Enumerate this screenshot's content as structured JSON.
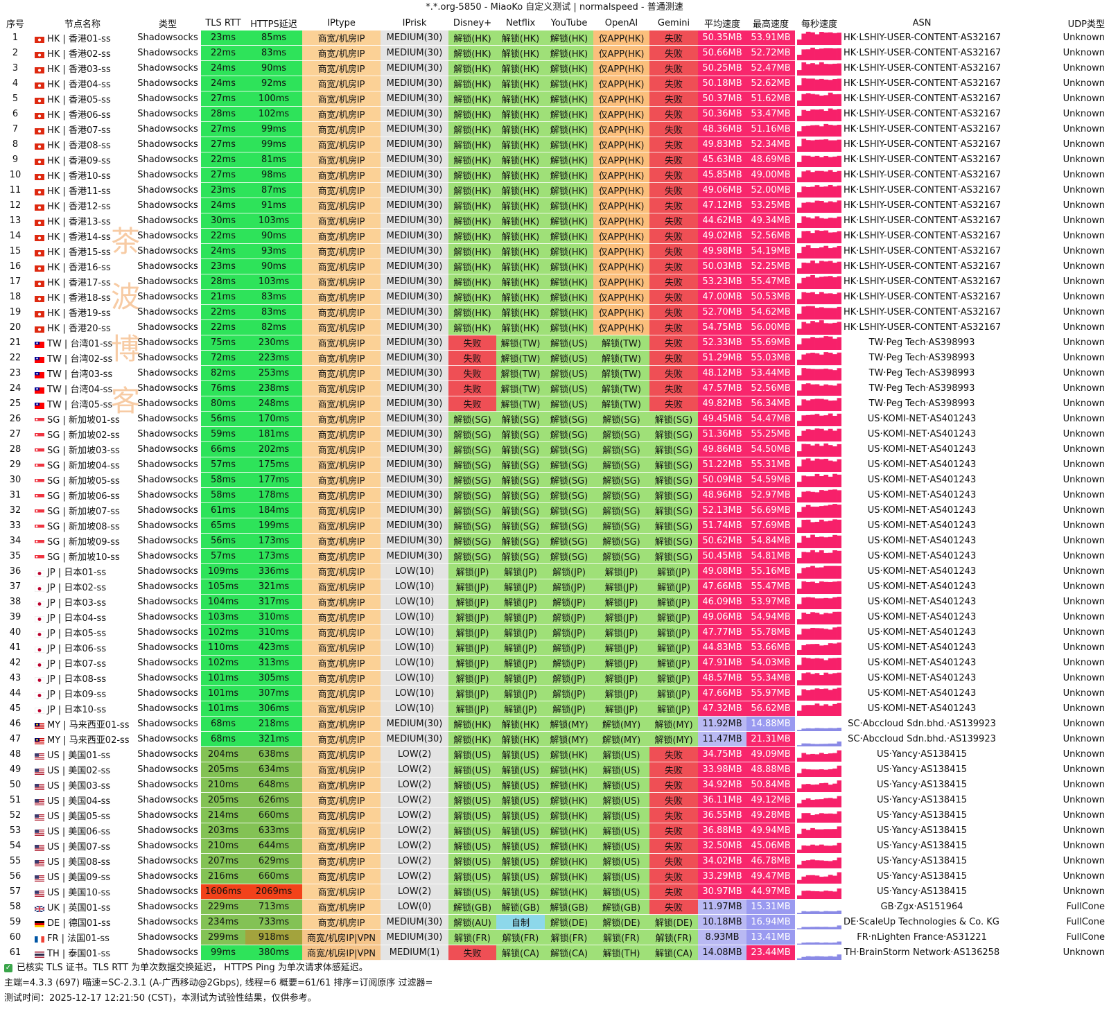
{
  "title": "*.*.org-5850 - MiaoKo 自定义测试 | normalspeed - 普通测速",
  "columns": [
    "序号",
    "节点名称",
    "类型",
    "TLS RTT",
    "HTTPS延迟",
    "IPtype",
    "IPrisk",
    "Disney+",
    "Netflix",
    "YouTube",
    "OpenAI",
    "Gemini",
    "平均速度",
    "最高速度",
    "每秒速度",
    "ASN",
    "UDP类型"
  ],
  "watermark": [
    "茶",
    "波",
    "博",
    "客"
  ],
  "colors": {
    "green": "#2ee35a",
    "green_mid": "#83c255",
    "olive": "#a3a33d",
    "dark_olive": "#7f7f21",
    "red_orange": "#f2421a",
    "light_green": "#9fe078",
    "tan": "#fbd196",
    "light_gray": "#e4e4e4",
    "red": "#ef4f55",
    "light_red": "#f08d8d",
    "orange": "#fbbf7c",
    "blue": "#8dd8ea",
    "pink": "#f8266c",
    "lavender": "#b9b9f3",
    "purple": "#9a9af0",
    "spark_pink": "#f7206a",
    "spark_purple": "#8a8ae6"
  },
  "groups": [
    {
      "start": 1,
      "count": 20,
      "prefix": "HK",
      "region": "香港",
      "flag": "hk",
      "type": "Shadowsocks",
      "tls": [
        "23ms",
        "22ms",
        "24ms",
        "24ms",
        "27ms",
        "28ms",
        "27ms",
        "27ms",
        "22ms",
        "27ms",
        "23ms",
        "24ms",
        "30ms",
        "22ms",
        "24ms",
        "23ms",
        "28ms",
        "21ms",
        "22ms",
        "22ms"
      ],
      "https": [
        "85ms",
        "83ms",
        "90ms",
        "92ms",
        "100ms",
        "102ms",
        "99ms",
        "99ms",
        "81ms",
        "98ms",
        "87ms",
        "91ms",
        "103ms",
        "90ms",
        "93ms",
        "90ms",
        "103ms",
        "83ms",
        "83ms",
        "82ms"
      ],
      "iptype": "商宽/机房IP",
      "iprisk": "MEDIUM(30)",
      "disney": "解锁(HK)",
      "netflix": "解锁(HK)",
      "youtube": "解锁(HK)",
      "openai": "仅APP(HK)",
      "gemini": "失败",
      "avg": [
        "50.35MB",
        "50.66MB",
        "50.25MB",
        "50.18MB",
        "50.37MB",
        "50.36MB",
        "48.36MB",
        "49.83MB",
        "45.63MB",
        "45.85MB",
        "49.06MB",
        "47.12MB",
        "44.62MB",
        "49.02MB",
        "49.98MB",
        "50.03MB",
        "53.23MB",
        "47.00MB",
        "52.70MB",
        "54.75MB"
      ],
      "max": [
        "53.91MB",
        "52.72MB",
        "52.47MB",
        "52.62MB",
        "51.62MB",
        "53.47MB",
        "51.16MB",
        "52.34MB",
        "48.69MB",
        "49.00MB",
        "52.00MB",
        "53.25MB",
        "49.34MB",
        "52.56MB",
        "54.19MB",
        "52.25MB",
        "55.47MB",
        "50.53MB",
        "54.62MB",
        "56.00MB"
      ],
      "asn": "HK·LSHIY-USER-CONTENT·AS32167",
      "udp": "Unknown"
    },
    {
      "start": 21,
      "count": 5,
      "prefix": "TW",
      "region": "台湾",
      "flag": "tw",
      "type": "Shadowsocks",
      "tls": [
        "75ms",
        "72ms",
        "82ms",
        "76ms",
        "80ms"
      ],
      "https": [
        "230ms",
        "223ms",
        "253ms",
        "238ms",
        "248ms"
      ],
      "iptype": "商宽/机房IP",
      "iprisk": "MEDIUM(30)",
      "disney": "失败",
      "netflix": "解锁(TW)",
      "youtube": "解锁(US)",
      "openai": "解锁(TW)",
      "gemini": "失败",
      "avg": [
        "52.33MB",
        "51.29MB",
        "48.12MB",
        "47.57MB",
        "49.82MB"
      ],
      "max": [
        "55.69MB",
        "55.03MB",
        "53.44MB",
        "52.56MB",
        "56.34MB"
      ],
      "asn": "TW·Peg Tech·AS398993",
      "udp": "Unknown"
    },
    {
      "start": 26,
      "count": 10,
      "prefix": "SG",
      "region": "新加坡",
      "flag": "sg",
      "type": "Shadowsocks",
      "tls": [
        "56ms",
        "59ms",
        "66ms",
        "57ms",
        "58ms",
        "58ms",
        "61ms",
        "65ms",
        "56ms",
        "57ms"
      ],
      "https": [
        "170ms",
        "181ms",
        "202ms",
        "175ms",
        "177ms",
        "178ms",
        "184ms",
        "199ms",
        "173ms",
        "173ms"
      ],
      "iptype": "商宽/机房IP",
      "iprisk": "MEDIUM(30)",
      "disney": "解锁(SG)",
      "netflix": "解锁(SG)",
      "youtube": "解锁(SG)",
      "openai": "解锁(SG)",
      "gemini": "解锁(SG)",
      "avg": [
        "49.45MB",
        "51.36MB",
        "49.86MB",
        "51.22MB",
        "50.09MB",
        "48.96MB",
        "52.13MB",
        "51.74MB",
        "50.62MB",
        "50.45MB"
      ],
      "max": [
        "54.47MB",
        "55.25MB",
        "54.50MB",
        "55.31MB",
        "54.59MB",
        "52.97MB",
        "56.69MB",
        "57.69MB",
        "54.84MB",
        "54.81MB"
      ],
      "asn": "US·KOMI-NET·AS401243",
      "udp": "Unknown"
    },
    {
      "start": 36,
      "count": 10,
      "prefix": "JP",
      "region": "日本",
      "flag": "jp",
      "type": "Shadowsocks",
      "tls": [
        "109ms",
        "105ms",
        "104ms",
        "103ms",
        "102ms",
        "110ms",
        "102ms",
        "101ms",
        "101ms",
        "101ms"
      ],
      "https": [
        "336ms",
        "321ms",
        "317ms",
        "310ms",
        "310ms",
        "423ms",
        "313ms",
        "305ms",
        "307ms",
        "306ms"
      ],
      "iptype": "商宽/机房IP",
      "iprisk": "LOW(10)",
      "disney": "解锁(JP)",
      "netflix": "解锁(JP)",
      "youtube": "解锁(JP)",
      "openai": "解锁(JP)",
      "gemini": "解锁(JP)",
      "avg": [
        "49.08MB",
        "47.66MB",
        "46.09MB",
        "49.06MB",
        "47.77MB",
        "44.83MB",
        "47.91MB",
        "48.57MB",
        "47.66MB",
        "47.32MB"
      ],
      "max": [
        "55.16MB",
        "55.47MB",
        "53.97MB",
        "54.94MB",
        "55.78MB",
        "53.66MB",
        "54.03MB",
        "55.34MB",
        "55.97MB",
        "56.62MB"
      ],
      "asn": "US·KOMI-NET·AS401243",
      "udp": "Unknown"
    },
    {
      "start": 46,
      "count": 2,
      "prefix": "MY",
      "region": "马来西亚",
      "flag": "my",
      "type": "Shadowsocks",
      "tls": [
        "68ms",
        "68ms"
      ],
      "https": [
        "218ms",
        "321ms"
      ],
      "iptype": "商宽/机房IP",
      "iprisk": "MEDIUM(30)",
      "disney": "解锁(HK)",
      "netflix": "解锁(HK)",
      "youtube": "解锁(MY)",
      "openai": "解锁(MY)",
      "gemini": "解锁(MY)",
      "avg": [
        "11.92MB",
        "11.47MB"
      ],
      "max": [
        "14.88MB",
        "21.31MB"
      ],
      "asn": "SC·Abccloud Sdn.bhd.·AS139923",
      "udp": "Unknown"
    },
    {
      "start": 48,
      "count": 10,
      "prefix": "US",
      "region": "美国",
      "flag": "us",
      "type": "Shadowsocks",
      "tls": [
        "204ms",
        "205ms",
        "210ms",
        "205ms",
        "214ms",
        "203ms",
        "210ms",
        "207ms",
        "216ms",
        "1606ms"
      ],
      "https": [
        "638ms",
        "634ms",
        "648ms",
        "626ms",
        "660ms",
        "633ms",
        "644ms",
        "629ms",
        "660ms",
        "2069ms"
      ],
      "iptype": "商宽/机房IP",
      "iprisk": "LOW(2)",
      "disney": "解锁(US)",
      "netflix": "解锁(US)",
      "youtube": "解锁(HK)",
      "openai": "解锁(US)",
      "gemini": "失败",
      "avg": [
        "34.75MB",
        "33.98MB",
        "34.92MB",
        "36.11MB",
        "36.55MB",
        "36.88MB",
        "32.50MB",
        "34.02MB",
        "33.29MB",
        "30.97MB"
      ],
      "max": [
        "49.09MB",
        "48.88MB",
        "50.84MB",
        "49.12MB",
        "49.28MB",
        "49.94MB",
        "45.06MB",
        "46.78MB",
        "49.47MB",
        "44.97MB"
      ],
      "asn": "US·Yancy·AS138415",
      "udp": "Unknown"
    }
  ],
  "extra_rows": [
    {
      "idx": "58",
      "name": "UK | 英国01-ss",
      "flag": "uk",
      "type": "Shadowsocks",
      "tls": "229ms",
      "https": "713ms",
      "iptype": "商宽/机房IP",
      "iprisk": "LOW(0)",
      "disney": "解锁(GB)",
      "netflix": "解锁(GB)",
      "youtube": "解锁(GB)",
      "openai": "解锁(GB)",
      "gemini": "失败",
      "avg": "11.97MB",
      "max": "15.31MB",
      "asn": "GB·Zgx·AS151964",
      "udp": "FullCone"
    },
    {
      "idx": "59",
      "name": "DE | 德国01-ss",
      "flag": "de",
      "type": "Shadowsocks",
      "tls": "234ms",
      "https": "733ms",
      "iptype": "商宽/机房IP",
      "iprisk": "MEDIUM(30)",
      "disney": "解锁(AU)",
      "netflix": "自制",
      "youtube": "解锁(DE)",
      "openai": "解锁(DE)",
      "gemini": "解锁(DE)",
      "avg": "10.18MB",
      "max": "16.94MB",
      "asn": "DE·ScaleUp Technologies & Co. KG·AS29014",
      "udp": "FullCone"
    },
    {
      "idx": "60",
      "name": "FR | 法国01-ss",
      "flag": "fr",
      "type": "Shadowsocks",
      "tls": "299ms",
      "https": "918ms",
      "iptype": "商宽/机房IP|VPN",
      "iprisk": "MEDIUM(30)",
      "disney": "解锁(FR)",
      "netflix": "解锁(FR)",
      "youtube": "解锁(FR)",
      "openai": "解锁(FR)",
      "gemini": "解锁(FR)",
      "avg": "8.93MB",
      "max": "13.41MB",
      "asn": "FR·nLighten France·AS31221",
      "udp": "FullCone"
    },
    {
      "idx": "61",
      "name": "TH | 泰国01-ss",
      "flag": "th",
      "type": "Shadowsocks",
      "tls": "99ms",
      "https": "380ms",
      "iptype": "商宽/机房IP|VPN",
      "iprisk": "MEDIUM(1)",
      "disney": "失败",
      "netflix": "解锁(CA)",
      "youtube": "解锁(CA)",
      "openai": "解锁(TH)",
      "gemini": "解锁(CA)",
      "avg": "14.08MB",
      "max": "23.44MB",
      "asn": "TH·BrainStorm Network·AS136258",
      "udp": "Unknown"
    }
  ],
  "footer": {
    "line1": "已核实 TLS 证书。TLS RTT 为单次数据交换延迟， HTTPS Ping 为单次请求体感延迟。",
    "line2": "主端=4.3.3 (697) 喵速=SC-2.3.1 (A-广西移动@2Gbps), 线程=6 概要=61/61 排序=订阅原序 过滤器=",
    "line3": "测试时间：2025-12-17 12:21:50 (CST)，本测试为试验性结果，仅供参考。"
  }
}
